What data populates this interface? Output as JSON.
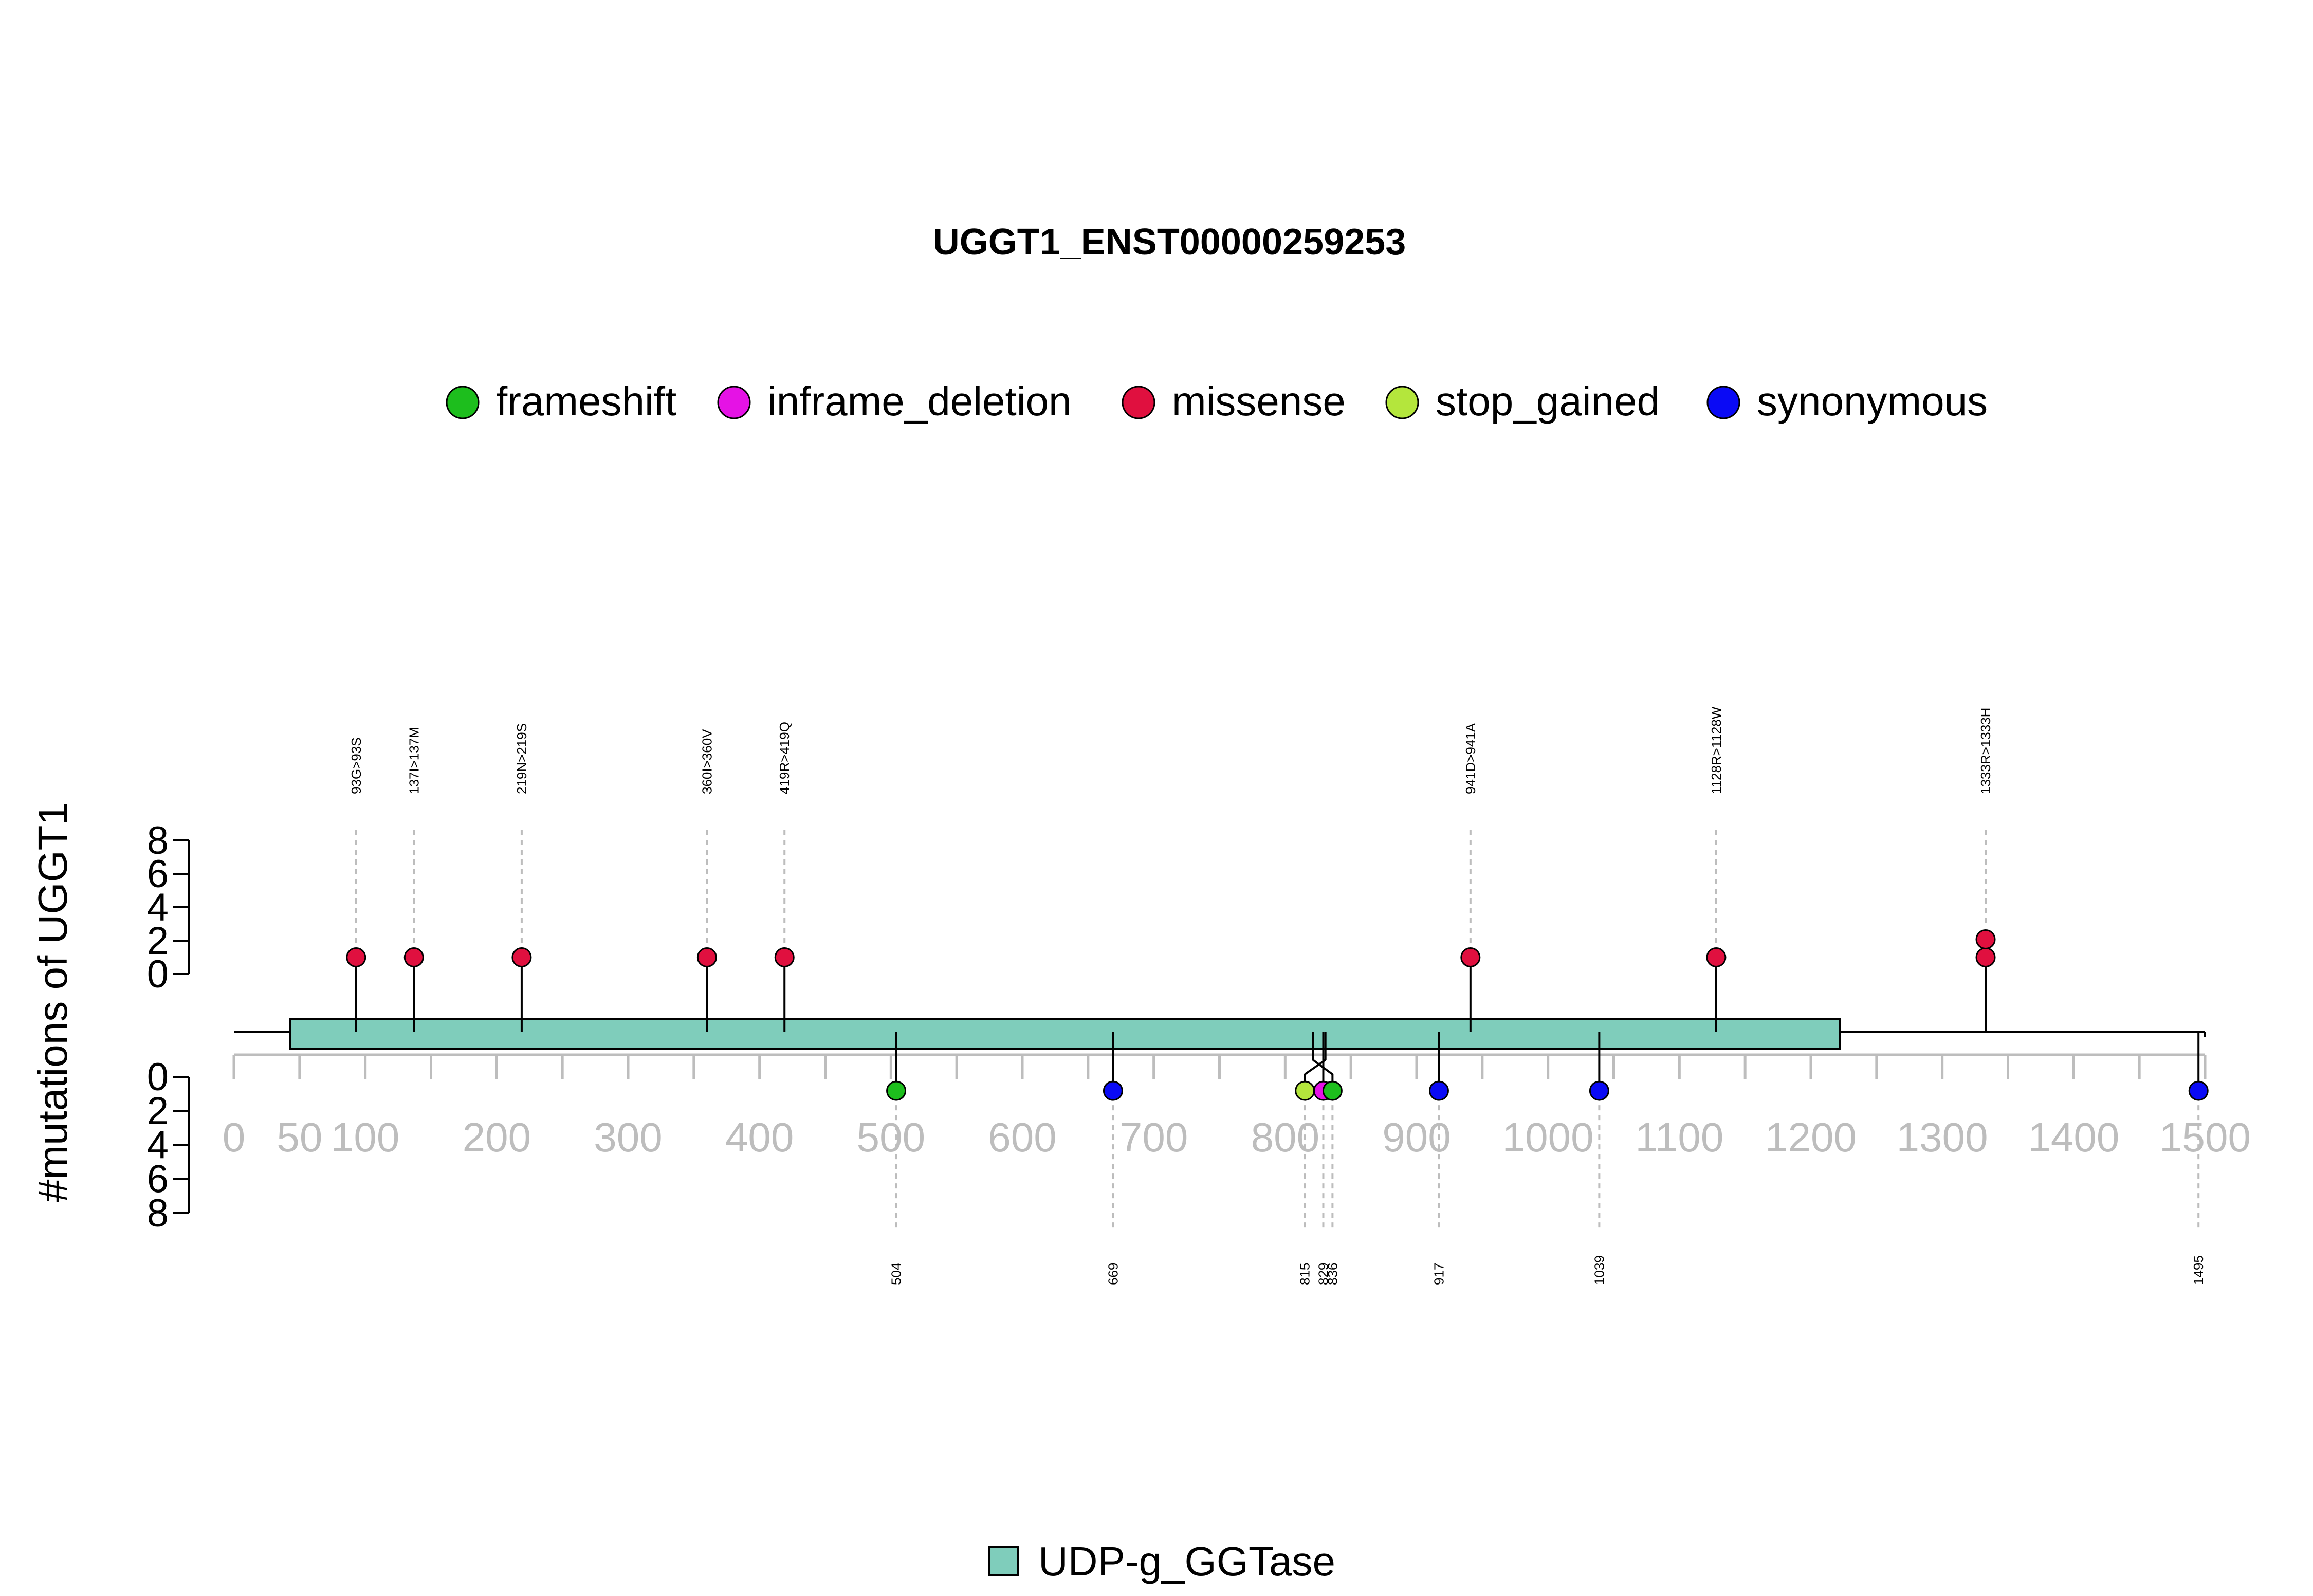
{
  "chart_data": {
    "type": "lollipop",
    "title": "UGGT1_ENST00000259253",
    "ylabel": "#mutations of UGGT1",
    "xlim": [
      0,
      1500
    ],
    "x_ticks": [
      0,
      50,
      100,
      200,
      300,
      400,
      500,
      600,
      700,
      800,
      900,
      1000,
      1100,
      1200,
      1300,
      1400,
      1500
    ],
    "y_ticks": [
      0,
      2,
      4,
      6,
      8
    ],
    "ylim": [
      0,
      8
    ],
    "protein_length": 1500,
    "legend": [
      {
        "label": "frameshift",
        "color": "#1DBE1D"
      },
      {
        "label": "inframe_deletion",
        "color": "#E512E5"
      },
      {
        "label": "missense",
        "color": "#E0103F"
      },
      {
        "label": "stop_gained",
        "color": "#B4E63C"
      },
      {
        "label": "synonymous",
        "color": "#0A0AF5"
      }
    ],
    "domains": [
      {
        "name": "UDP-g_GGTase",
        "start": 43,
        "end": 1222,
        "color": "#7FCDBB"
      }
    ],
    "upper_mutations": [
      {
        "position": 93,
        "count": 1,
        "type": "missense",
        "label": "93G>93S"
      },
      {
        "position": 137,
        "count": 1,
        "type": "missense",
        "label": "137I>137M"
      },
      {
        "position": 219,
        "count": 1,
        "type": "missense",
        "label": "219N>219S"
      },
      {
        "position": 360,
        "count": 1,
        "type": "missense",
        "label": "360I>360V"
      },
      {
        "position": 419,
        "count": 1,
        "type": "missense",
        "label": "419R>419Q"
      },
      {
        "position": 941,
        "count": 1,
        "type": "missense",
        "label": "941D>941A"
      },
      {
        "position": 1128,
        "count": 1,
        "type": "missense",
        "label": "1128R>1128W"
      },
      {
        "position": 1333,
        "count": 2,
        "type": "missense",
        "label": "1333R>1333H"
      }
    ],
    "lower_mutations": [
      {
        "position": 504,
        "count": 1,
        "type": "frameshift",
        "label": "504"
      },
      {
        "position": 669,
        "count": 1,
        "type": "synonymous",
        "label": "669"
      },
      {
        "position": 815,
        "count": 1,
        "type": "stop_gained",
        "label": "815"
      },
      {
        "position": 829,
        "count": 1,
        "type": "inframe_deletion",
        "label": "829"
      },
      {
        "position": 836,
        "count": 1,
        "type": "frameshift",
        "label": "836"
      },
      {
        "position": 917,
        "count": 1,
        "type": "synonymous",
        "label": "917"
      },
      {
        "position": 1039,
        "count": 1,
        "type": "synonymous",
        "label": "1039"
      },
      {
        "position": 1495,
        "count": 1,
        "type": "synonymous",
        "label": "1495"
      }
    ]
  }
}
